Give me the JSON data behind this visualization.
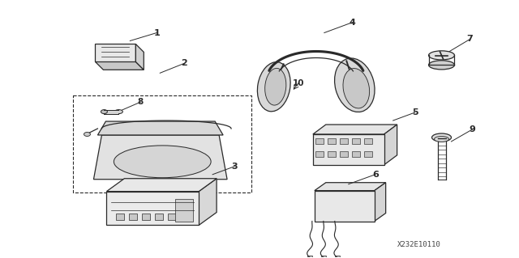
{
  "footer": "X232E10110",
  "bg_color": "#ffffff",
  "line_color": "#2a2a2a",
  "fig_width": 6.4,
  "fig_height": 3.19,
  "dpi": 100
}
